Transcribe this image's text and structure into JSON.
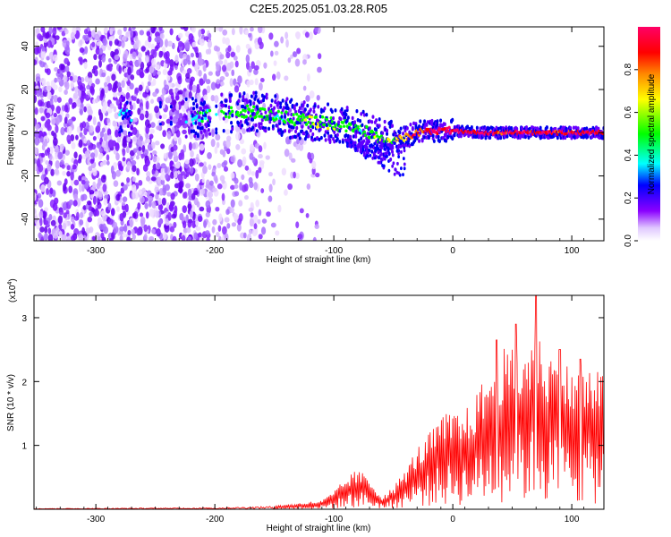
{
  "title": "C2E5.2025.051.03.28.R05",
  "chart_data": [
    {
      "type": "heatmap",
      "xlabel": "Height of straight line (km)",
      "ylabel": "Frequency (Hz)",
      "xlim": [
        -352,
        127
      ],
      "ylim": [
        -50,
        49
      ],
      "xticks": [
        -300,
        -200,
        -100,
        0,
        100
      ],
      "yticks": [
        -40,
        -20,
        0,
        20,
        40
      ],
      "xtick_labels": [
        "-300",
        "-200",
        "-100",
        "0",
        "100"
      ],
      "ytick_labels": [
        "-40",
        "-20",
        "0",
        "20",
        "40"
      ],
      "colorbar": {
        "label": "Normalized spectral amplitude",
        "range": [
          0,
          1
        ],
        "ticks": [
          0.0,
          0.2,
          0.4,
          0.6,
          0.8
        ],
        "tick_labels": [
          "0.0",
          "0.2",
          "0.4",
          "0.6",
          "0.8"
        ],
        "colors": [
          "#ffffff",
          "#8a00ff",
          "#0000ff",
          "#00ffff",
          "#00ff00",
          "#ffff00",
          "#ff8800",
          "#ff0000",
          "#ff0066"
        ]
      },
      "ridge": {
        "x": [
          -280,
          -250,
          -215,
          -190,
          -170,
          -150,
          -130,
          -110,
          -90,
          -75,
          -60,
          -50,
          -40,
          -30,
          -20,
          -10,
          0,
          20,
          40,
          60,
          80,
          100,
          127
        ],
        "freq": [
          8,
          6,
          7,
          9,
          10,
          8,
          6,
          5,
          3,
          1,
          -3,
          -4,
          -2,
          0,
          1,
          1,
          1,
          0,
          0,
          0,
          0,
          0,
          0
        ],
        "amplitude": [
          0.3,
          0.2,
          0.35,
          0.4,
          0.45,
          0.4,
          0.45,
          0.5,
          0.45,
          0.4,
          0.5,
          0.55,
          0.7,
          0.85,
          0.9,
          0.95,
          0.95,
          0.95,
          0.9,
          0.9,
          0.9,
          0.9,
          0.9
        ]
      }
    },
    {
      "type": "line",
      "xlabel": "Height of straight line (km)",
      "ylabel": "SNR (10 * v/v)",
      "y_multiplier": "(x10^4)",
      "y_multiplier_base": "(x10",
      "y_multiplier_exp": "4",
      "y_multiplier_close": ")",
      "xlim": [
        -352,
        127
      ],
      "ylim": [
        0,
        3.35
      ],
      "xticks": [
        -300,
        -200,
        -100,
        0,
        100
      ],
      "yticks": [
        1,
        2,
        3
      ],
      "xtick_labels": [
        "-300",
        "-200",
        "-100",
        "0",
        "100"
      ],
      "ytick_labels": [
        "1",
        "2",
        "3"
      ],
      "color": "#ff0000",
      "envelope": {
        "x": [
          -352,
          -200,
          -150,
          -110,
          -100,
          -90,
          -80,
          -70,
          -60,
          -50,
          -40,
          -30,
          -20,
          -10,
          0,
          10,
          20,
          30,
          40,
          50,
          60,
          70,
          80,
          90,
          100,
          110,
          127
        ],
        "y": [
          0.01,
          0.02,
          0.04,
          0.1,
          0.2,
          0.35,
          0.45,
          0.35,
          0.15,
          0.25,
          0.45,
          0.7,
          0.85,
          1.05,
          1.1,
          1.1,
          1.3,
          1.6,
          1.8,
          1.8,
          1.85,
          2.0,
          1.8,
          1.7,
          1.6,
          1.6,
          1.55
        ]
      },
      "peaks": [
        {
          "x": 37,
          "y": 2.65
        },
        {
          "x": 53,
          "y": 2.9
        },
        {
          "x": 70,
          "y": 3.35
        },
        {
          "x": 90,
          "y": 2.5
        },
        {
          "x": 107,
          "y": 2.35
        }
      ]
    }
  ]
}
